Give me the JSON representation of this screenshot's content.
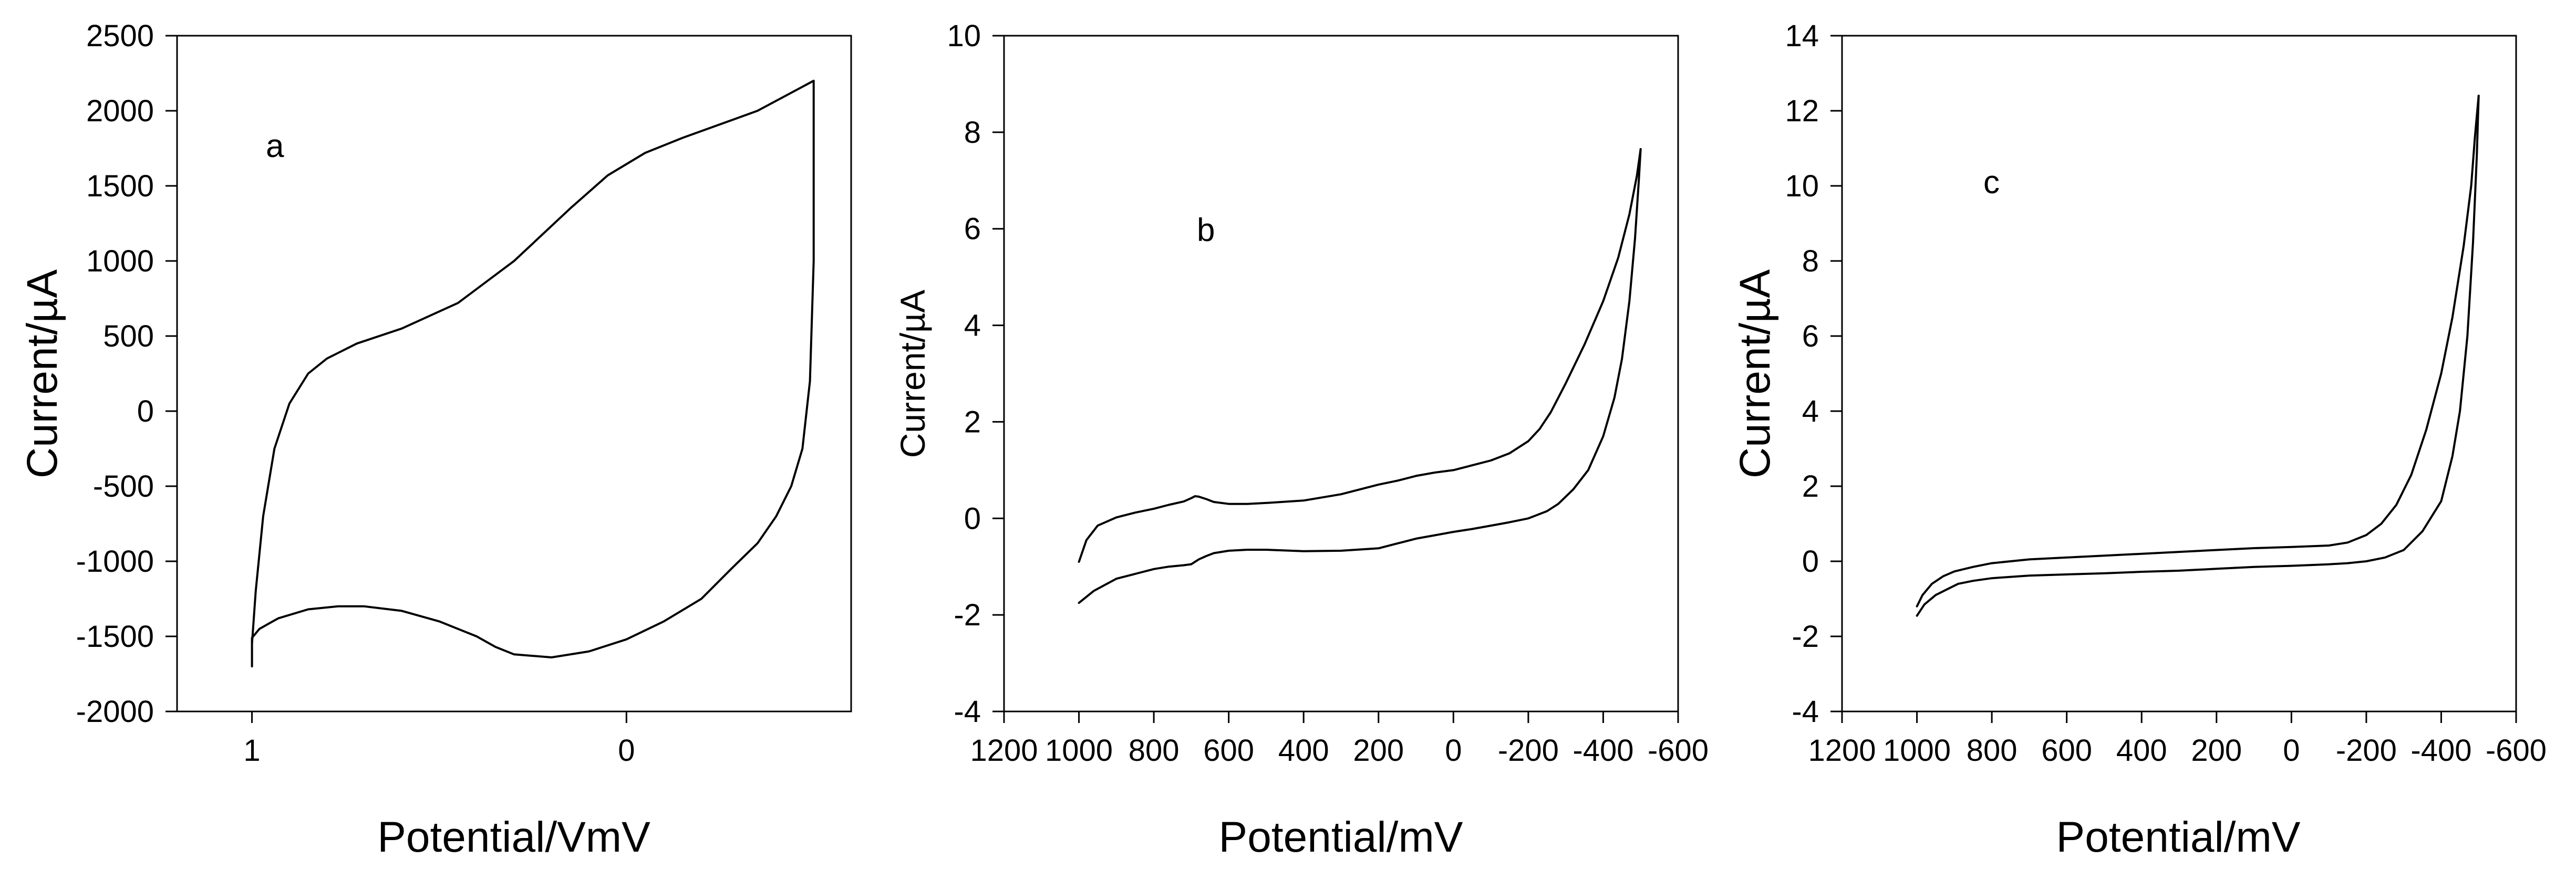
{
  "chart_data": [
    {
      "type": "line",
      "panel_label": "a",
      "xlabel": "Potential/VmV",
      "ylabel": "Current/µA",
      "xlim": [
        1.2,
        -0.6
      ],
      "ylim": [
        -2000,
        2500
      ],
      "x_ticks": [
        "1",
        "0"
      ],
      "y_ticks": [
        "2500",
        "2000",
        "1500",
        "1000",
        "500",
        "0",
        "-500",
        "-1000",
        "-1500",
        "-2000"
      ],
      "grid": false,
      "series": [
        {
          "x": [
            1.0,
            0.99,
            0.97,
            0.94,
            0.9,
            0.85,
            0.8,
            0.72,
            0.6,
            0.45,
            0.3,
            0.15,
            0.05,
            -0.05,
            -0.15,
            -0.35,
            -0.5,
            -0.5,
            -0.5,
            -0.49,
            -0.47,
            -0.44,
            -0.4,
            -0.35,
            -0.28,
            -0.2,
            -0.1,
            0.0,
            0.1,
            0.2,
            0.3,
            0.35,
            0.4,
            0.5,
            0.6,
            0.7,
            0.77,
            0.85,
            0.93,
            0.98,
            1.0,
            1.0
          ],
          "y": [
            -1550,
            -1200,
            -700,
            -250,
            50,
            250,
            350,
            450,
            550,
            720,
            1000,
            1350,
            1570,
            1720,
            1820,
            2000,
            2200,
            1800,
            1000,
            200,
            -250,
            -500,
            -700,
            -880,
            -1050,
            -1250,
            -1400,
            -1520,
            -1600,
            -1640,
            -1620,
            -1570,
            -1500,
            -1400,
            -1330,
            -1300,
            -1300,
            -1320,
            -1380,
            -1450,
            -1510,
            -1700
          ]
        }
      ]
    },
    {
      "type": "line",
      "panel_label": "b",
      "xlabel": "Potential/mV",
      "ylabel": "Current/µA",
      "xlim": [
        1200,
        -600
      ],
      "ylim": [
        -4,
        10
      ],
      "x_ticks": [
        "1200",
        "1000",
        "800",
        "600",
        "400",
        "200",
        "0",
        "-200",
        "-400",
        "-600"
      ],
      "y_ticks": [
        "10",
        "8",
        "6",
        "4",
        "2",
        "0",
        "-2",
        "-4"
      ],
      "grid": false,
      "series": [
        {
          "x": [
            1000,
            980,
            950,
            900,
            850,
            800,
            760,
            720,
            700,
            690,
            680,
            660,
            640,
            600,
            550,
            500,
            400,
            300,
            200,
            150,
            100,
            50,
            0,
            -50,
            -100,
            -150,
            -200,
            -230,
            -260,
            -300,
            -350,
            -400,
            -440,
            -470,
            -490,
            -500
          ],
          "y": [
            -0.9,
            -0.45,
            -0.15,
            0.02,
            0.12,
            0.2,
            0.28,
            0.35,
            0.42,
            0.46,
            0.45,
            0.4,
            0.34,
            0.3,
            0.3,
            0.32,
            0.37,
            0.5,
            0.7,
            0.78,
            0.88,
            0.95,
            1.0,
            1.1,
            1.2,
            1.35,
            1.6,
            1.85,
            2.2,
            2.8,
            3.6,
            4.5,
            5.4,
            6.3,
            7.1,
            7.65
          ]
        },
        {
          "x": [
            1000,
            960,
            900,
            850,
            800,
            760,
            720,
            700,
            680,
            660,
            640,
            600,
            550,
            500,
            400,
            300,
            200,
            150,
            100,
            50,
            0,
            -50,
            -100,
            -150,
            -200,
            -250,
            -280,
            -320,
            -360,
            -400,
            -430,
            -450,
            -470,
            -485,
            -495,
            -500
          ],
          "y": [
            -1.75,
            -1.5,
            -1.25,
            -1.15,
            -1.05,
            -1.0,
            -0.97,
            -0.95,
            -0.85,
            -0.78,
            -0.72,
            -0.67,
            -0.65,
            -0.65,
            -0.68,
            -0.67,
            -0.62,
            -0.52,
            -0.42,
            -0.35,
            -0.28,
            -0.22,
            -0.15,
            -0.08,
            0.0,
            0.15,
            0.3,
            0.6,
            1.0,
            1.7,
            2.5,
            3.3,
            4.5,
            5.8,
            7.0,
            7.65
          ]
        }
      ]
    },
    {
      "type": "line",
      "panel_label": "c",
      "xlabel": "Potential/mV",
      "ylabel": "Current/µA",
      "xlim": [
        1200,
        -600
      ],
      "ylim": [
        -4,
        14
      ],
      "x_ticks": [
        "1200",
        "1000",
        "800",
        "600",
        "400",
        "200",
        "0",
        "-200",
        "-400",
        "-600"
      ],
      "y_ticks": [
        "14",
        "12",
        "10",
        "8",
        "6",
        "4",
        "2",
        "0",
        "-2",
        "-4"
      ],
      "grid": false,
      "series": [
        {
          "x": [
            1000,
            985,
            960,
            930,
            900,
            850,
            800,
            700,
            600,
            500,
            400,
            300,
            200,
            100,
            0,
            -100,
            -150,
            -200,
            -240,
            -280,
            -320,
            -360,
            -400,
            -430,
            -460,
            -480,
            -490,
            -500
          ],
          "y": [
            -1.2,
            -0.9,
            -0.6,
            -0.4,
            -0.27,
            -0.15,
            -0.05,
            0.05,
            0.1,
            0.15,
            0.2,
            0.25,
            0.3,
            0.35,
            0.38,
            0.42,
            0.5,
            0.7,
            1.0,
            1.5,
            2.3,
            3.5,
            5.0,
            6.5,
            8.4,
            10.0,
            11.3,
            12.4
          ]
        },
        {
          "x": [
            1000,
            980,
            950,
            920,
            890,
            850,
            800,
            700,
            600,
            500,
            400,
            300,
            200,
            100,
            0,
            -100,
            -150,
            -200,
            -250,
            -300,
            -350,
            -400,
            -430,
            -450,
            -470,
            -485,
            -495,
            -500
          ],
          "y": [
            -1.45,
            -1.15,
            -0.9,
            -0.75,
            -0.6,
            -0.52,
            -0.45,
            -0.38,
            -0.35,
            -0.32,
            -0.28,
            -0.25,
            -0.2,
            -0.15,
            -0.12,
            -0.08,
            -0.05,
            0.0,
            0.1,
            0.3,
            0.8,
            1.6,
            2.8,
            4.0,
            6.0,
            8.5,
            10.8,
            12.4
          ]
        }
      ]
    }
  ]
}
